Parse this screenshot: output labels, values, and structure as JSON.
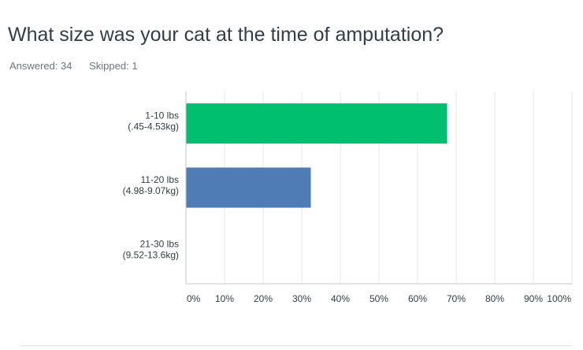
{
  "question": {
    "title": "What size was your cat at the time of amputation?",
    "answered_label": "Answered: 34",
    "skipped_label": "Skipped: 1"
  },
  "colors": {
    "bar_green": "#00bf6f",
    "bar_blue": "#507cb6",
    "gridline": "#e3e7ea",
    "axis": "#c3c9ce",
    "label_text": "#333e48"
  },
  "chart_data": {
    "type": "bar",
    "orientation": "horizontal",
    "categories": [
      [
        "1-10 lbs",
        "(.45-4.53kg)"
      ],
      [
        "11-20 lbs",
        "(4.98-9.07kg)"
      ],
      [
        "21-30 lbs",
        "(9.52-13.6kg)"
      ]
    ],
    "values": [
      67.65,
      32.35,
      0
    ],
    "bar_colors": [
      "#00bf6f",
      "#507cb6",
      "#507cb6"
    ],
    "xlim": [
      0,
      100
    ],
    "xticks": [
      0,
      10,
      20,
      30,
      40,
      50,
      60,
      70,
      80,
      90,
      100
    ],
    "xtick_labels": [
      "0%",
      "10%",
      "20%",
      "30%",
      "40%",
      "50%",
      "60%",
      "70%",
      "80%",
      "90%",
      "100%"
    ],
    "grid": true
  }
}
